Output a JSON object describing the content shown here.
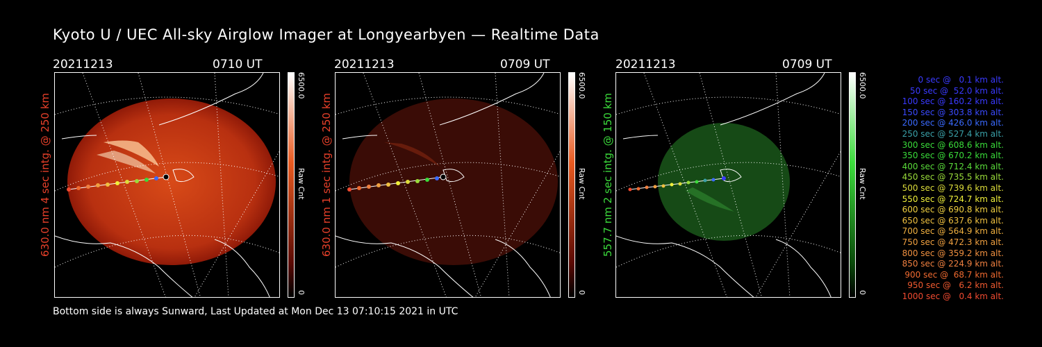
{
  "title": "Kyoto U / UEC All-sky Airglow Imager at Longyearbyen — Realtime Data",
  "footer": "Bottom side is always Sunward, Last Updated at Mon Dec 13 07:10:15 2021 in UTC",
  "panels": [
    {
      "date": "20211213",
      "time": "0710 UT",
      "ylabel": "630.0 nm 4 sec intg. @ 250 km",
      "ylabel_color": "#e8402a",
      "cbar_max": "6500.0",
      "cbar_min": "0",
      "cbar_label": "Raw Cnt",
      "image_color": "#c83010"
    },
    {
      "date": "20211213",
      "time": "0709 UT",
      "ylabel": "630.0 nm 1 sec intg. @ 250 km",
      "ylabel_color": "#e8402a",
      "cbar_max": "6500.0",
      "cbar_min": "0",
      "cbar_label": "Raw Cnt",
      "image_color": "#3a0c06"
    },
    {
      "date": "20211213",
      "time": "0709 UT",
      "ylabel": "557.7 nm 2 sec intg. @ 150 km",
      "ylabel_color": "#3cdc3c",
      "cbar_max": "6500.0",
      "cbar_min": "0",
      "cbar_label": "Raw Cnt",
      "image_color": "#164a16"
    }
  ],
  "legend": [
    {
      "text": "0 sec @   0.1 km alt.",
      "color": "#3a3aff"
    },
    {
      "text": "50 sec @  52.0 km alt.",
      "color": "#3a3aff"
    },
    {
      "text": "100 sec @ 160.2 km alt.",
      "color": "#3a3aff"
    },
    {
      "text": "150 sec @ 303.8 km alt.",
      "color": "#3a4aff"
    },
    {
      "text": "200 sec @ 426.0 km alt.",
      "color": "#3a6aff"
    },
    {
      "text": "250 sec @ 527.4 km alt.",
      "color": "#3aa0a8"
    },
    {
      "text": "300 sec @ 608.6 km alt.",
      "color": "#3adc3a"
    },
    {
      "text": "350 sec @ 670.2 km alt.",
      "color": "#3adc3a"
    },
    {
      "text": "400 sec @ 712.4 km alt.",
      "color": "#5adc3a"
    },
    {
      "text": "450 sec @ 735.5 km alt.",
      "color": "#9adc3a"
    },
    {
      "text": "500 sec @ 739.6 km alt.",
      "color": "#dcdc3a"
    },
    {
      "text": "550 sec @ 724.7 km alt.",
      "color": "#f0f03a"
    },
    {
      "text": "600 sec @ 690.8 km alt.",
      "color": "#f0d040"
    },
    {
      "text": "650 sec @ 637.6 km alt.",
      "color": "#f0c040"
    },
    {
      "text": "700 sec @ 564.9 km alt.",
      "color": "#f0b040"
    },
    {
      "text": "750 sec @ 472.3 km alt.",
      "color": "#f0a040"
    },
    {
      "text": "800 sec @ 359.2 km alt.",
      "color": "#f09040"
    },
    {
      "text": "850 sec @ 224.9 km alt.",
      "color": "#f08040"
    },
    {
      "text": "900 sec @  68.7 km alt.",
      "color": "#f06a30"
    },
    {
      "text": "950 sec @   6.2 km alt.",
      "color": "#f05a30"
    },
    {
      "text": "1000 sec @   0.4 km alt.",
      "color": "#f04a30"
    }
  ]
}
